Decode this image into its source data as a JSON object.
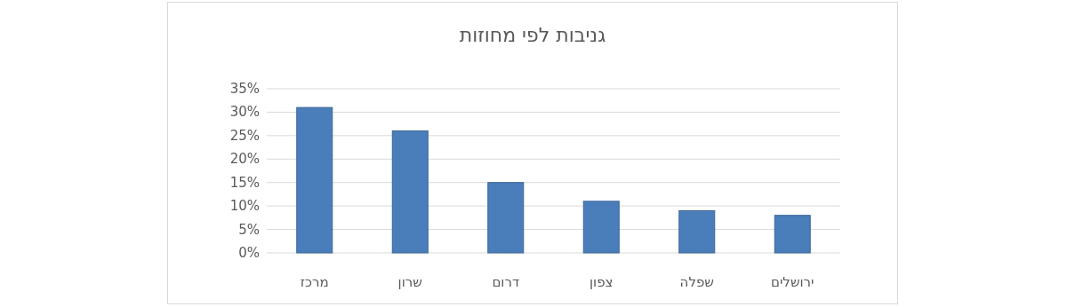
{
  "chart_data": {
    "type": "bar",
    "title": "גניבות לפי מחוזות",
    "categories": [
      "מרכז",
      "שרון",
      "דרום",
      "צפון",
      "שפלה",
      "ירושלים"
    ],
    "values": [
      31,
      26,
      15,
      11,
      9,
      8
    ],
    "color": "#4a7ebb",
    "ylim": [
      0,
      35
    ],
    "yticks": [
      {
        "value": 0,
        "label": "0%"
      },
      {
        "value": 5,
        "label": "5%"
      },
      {
        "value": 10,
        "label": "10%"
      },
      {
        "value": 15,
        "label": "15%"
      },
      {
        "value": 20,
        "label": "20%"
      },
      {
        "value": 25,
        "label": "25%"
      },
      {
        "value": 30,
        "label": "30%"
      },
      {
        "value": 35,
        "label": "35%"
      }
    ],
    "grid": "y"
  }
}
